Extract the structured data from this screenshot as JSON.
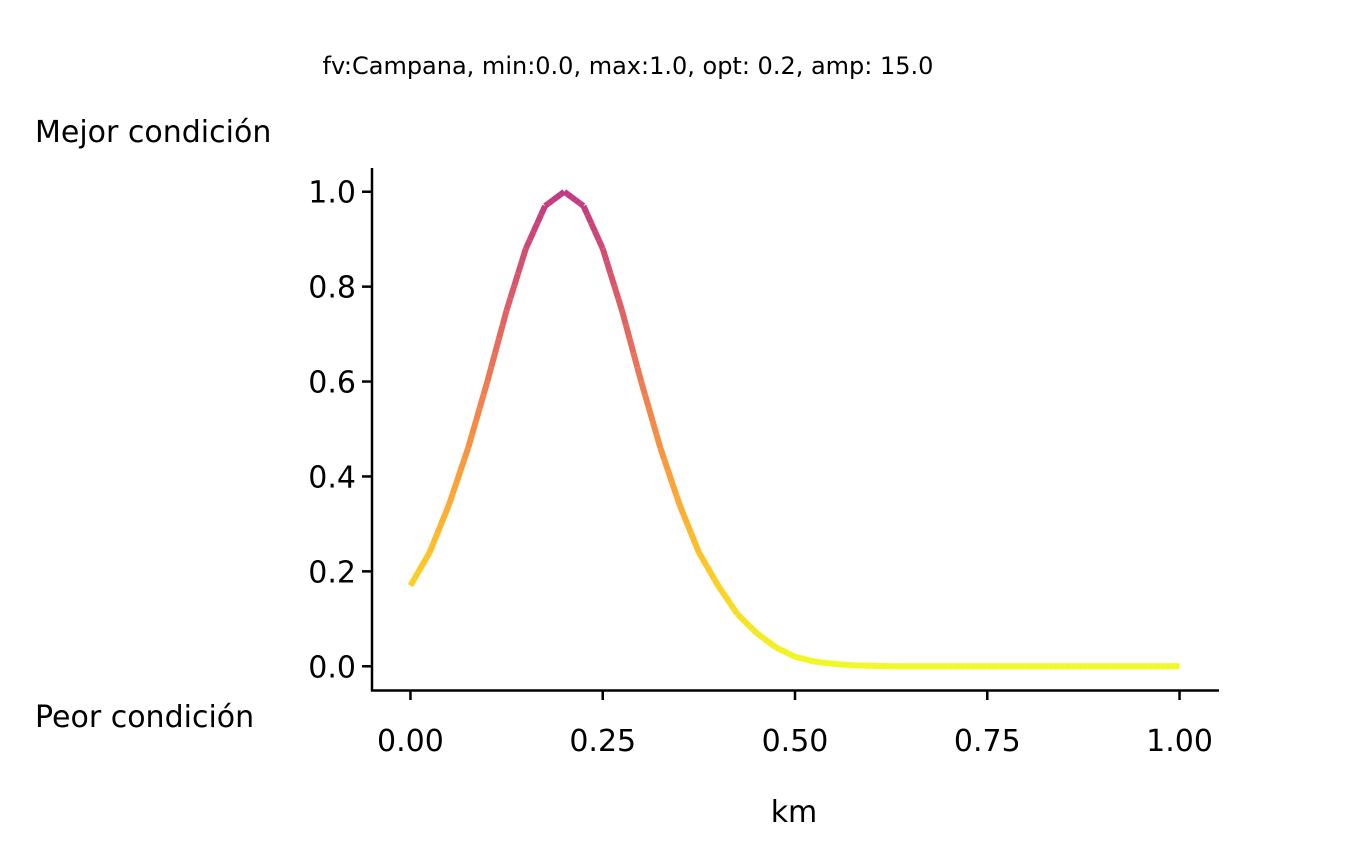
{
  "chart_data": {
    "type": "line",
    "title": "fv:Campana, min:0.0, max:1.0, opt: 0.2, amp: 15.0",
    "xlabel": "km",
    "ylabel_top": "Mejor condición",
    "ylabel_bottom": "Peor condición",
    "xlim": [
      -0.05,
      1.05
    ],
    "ylim": [
      -0.05,
      1.05
    ],
    "x_ticks": [
      0.0,
      0.25,
      0.5,
      0.75,
      1.0
    ],
    "x_tick_labels": [
      "0.00",
      "0.25",
      "0.50",
      "0.75",
      "1.00"
    ],
    "y_ticks": [
      0.0,
      0.2,
      0.4,
      0.6,
      0.8,
      1.0
    ],
    "y_tick_labels": [
      "0.0",
      "0.2",
      "0.4",
      "0.6",
      "0.8",
      "1.0"
    ],
    "grid": false,
    "colormap": "plasma",
    "colormap_range": [
      0.45,
      1.0
    ],
    "series": [
      {
        "x": [
          0.0,
          0.025,
          0.05,
          0.075,
          0.1,
          0.125,
          0.15,
          0.175,
          0.2,
          0.225,
          0.25,
          0.275,
          0.3,
          0.325,
          0.35,
          0.375,
          0.4,
          0.425,
          0.45,
          0.475,
          0.5,
          0.525,
          0.55,
          0.575,
          0.6,
          0.625,
          0.65,
          0.675,
          0.7,
          0.725,
          0.75,
          0.775,
          0.8,
          0.825,
          0.85,
          0.875,
          0.9,
          0.925,
          0.95,
          0.975,
          1.0
        ],
        "y": [
          0.17,
          0.24,
          0.34,
          0.46,
          0.6,
          0.75,
          0.88,
          0.97,
          1.0,
          0.97,
          0.88,
          0.75,
          0.6,
          0.46,
          0.34,
          0.24,
          0.17,
          0.11,
          0.07,
          0.04,
          0.02,
          0.01,
          0.005,
          0.002,
          0.001,
          0.0,
          0.0,
          0.0,
          0.0,
          0.0,
          0.0,
          0.0,
          0.0,
          0.0,
          0.0,
          0.0,
          0.0,
          0.0,
          0.0,
          0.0,
          0.0
        ]
      }
    ]
  }
}
